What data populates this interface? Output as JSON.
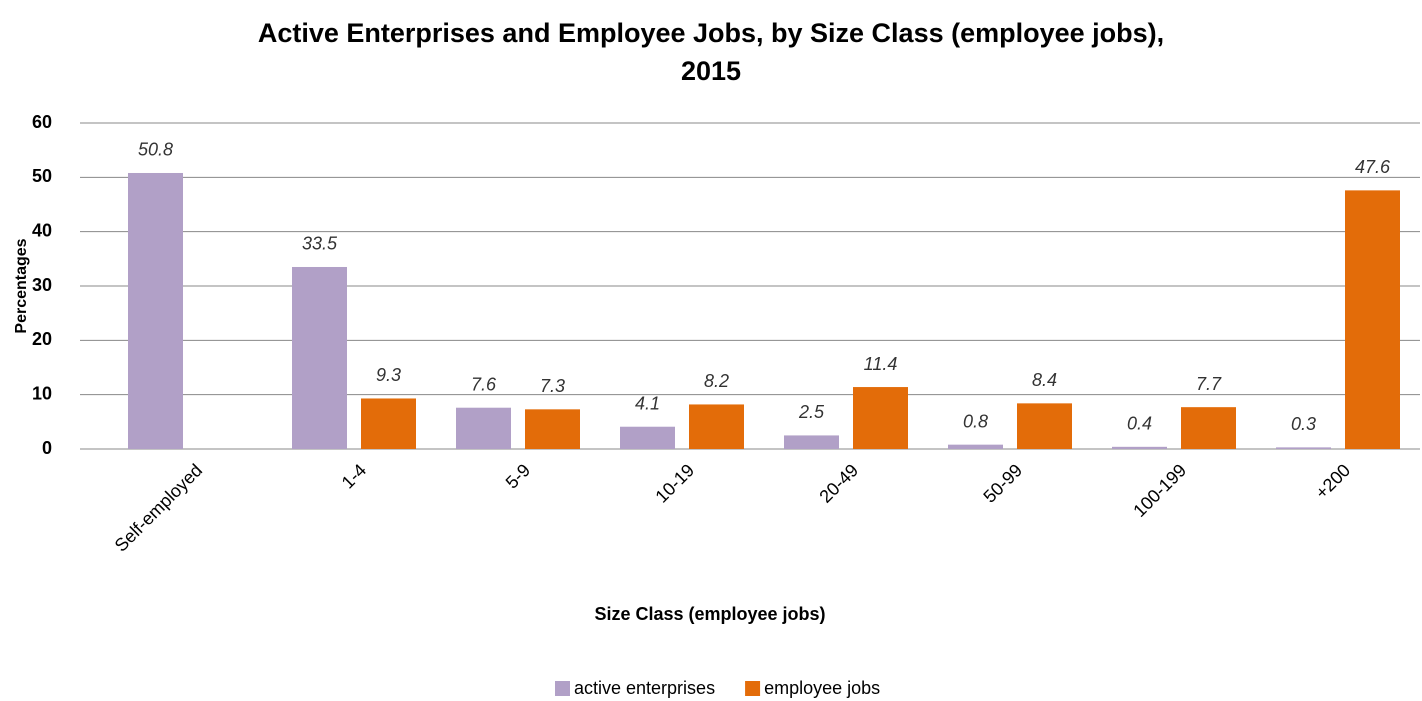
{
  "chart_data": {
    "type": "bar",
    "title": "Active Enterprises and Employee Jobs, by Size Class (employee jobs), 2015",
    "x_label": "Size Class (employee jobs)",
    "y_label": "Percentages",
    "categories": [
      "Self-employed",
      "1-4",
      "5-9",
      "10-19",
      "20-49",
      "50-99",
      "100-199",
      "+200"
    ],
    "series": [
      {
        "name": "active enterprises",
        "color": "#b1a0c7",
        "values": [
          50.8,
          33.5,
          7.6,
          4.1,
          2.5,
          0.8,
          0.4,
          0.3
        ]
      },
      {
        "name": "employee jobs",
        "color": "#e36c09",
        "values": [
          null,
          9.3,
          7.3,
          8.2,
          11.4,
          8.4,
          7.7,
          47.6
        ]
      }
    ],
    "ylim": [
      0,
      60
    ],
    "yticks": [
      0,
      10,
      20,
      30,
      40,
      50,
      60
    ],
    "grid": true,
    "legend": "bottom"
  }
}
